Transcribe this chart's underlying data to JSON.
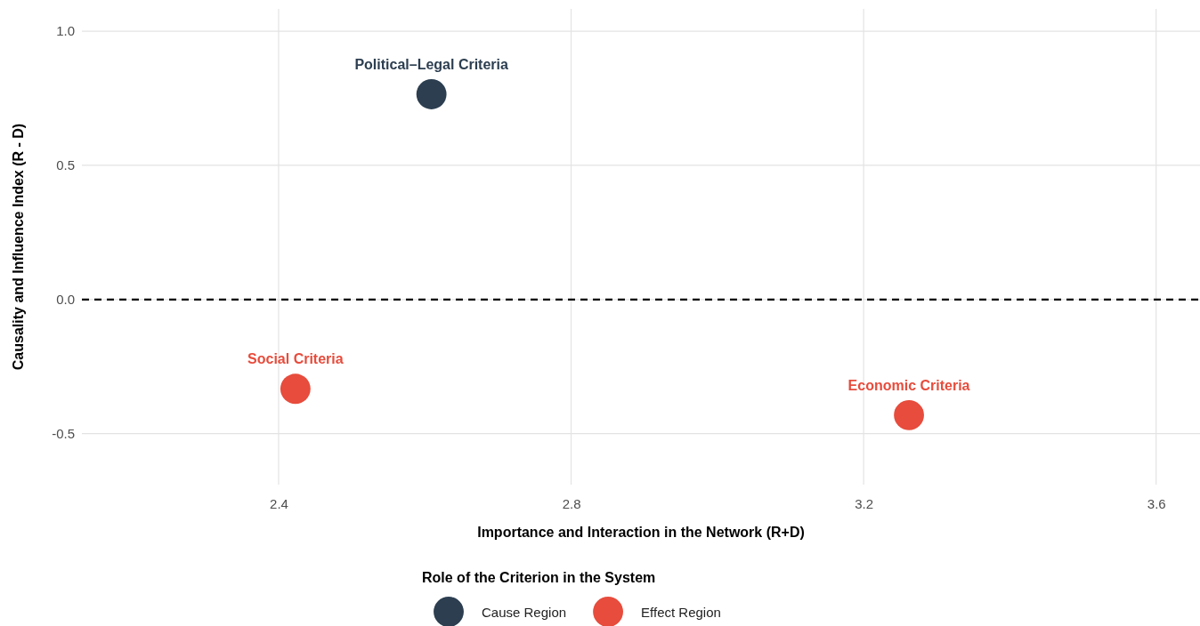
{
  "chart_data": {
    "type": "scatter",
    "xlabel": "Importance and Interaction in the Network (R+D)",
    "ylabel": "Causality and Influence Index (R - D)",
    "legend_title": "Role of the Criterion in the System",
    "series": [
      {
        "name": "Cause Region",
        "color": "#2c3e50",
        "x": [
          2.609
        ],
        "values": [
          0.765
        ]
      },
      {
        "name": "Effect Region",
        "color": "#e74c3c",
        "x": [
          2.423,
          3.262
        ],
        "values": [
          -0.333,
          -0.431
        ]
      }
    ],
    "annotations": [
      {
        "text": "Political–Legal Criteria",
        "x": 2.609,
        "y": 0.765
      },
      {
        "text": "Social Criteria",
        "x": 2.423,
        "y": -0.333
      },
      {
        "text": "Economic Criteria",
        "x": 3.262,
        "y": -0.431
      }
    ],
    "ref_lines": [
      {
        "axis": "y",
        "value": 0,
        "color": "#000000",
        "line_style": "dashed"
      }
    ],
    "xlim": [
      2.131,
      3.66
    ],
    "ylim": [
      -0.69,
      1.083
    ],
    "xticks": [
      2.4,
      2.8,
      3.2,
      3.6
    ],
    "yticks": [
      {
        "value": -0.5,
        "label": "-0.5"
      },
      {
        "value": 0,
        "label": "0.0"
      },
      {
        "value": 0.5,
        "label": "0.5"
      },
      {
        "value": 1,
        "label": "1.0"
      }
    ],
    "grid": true,
    "legend": "bottom",
    "marker": "circle"
  }
}
